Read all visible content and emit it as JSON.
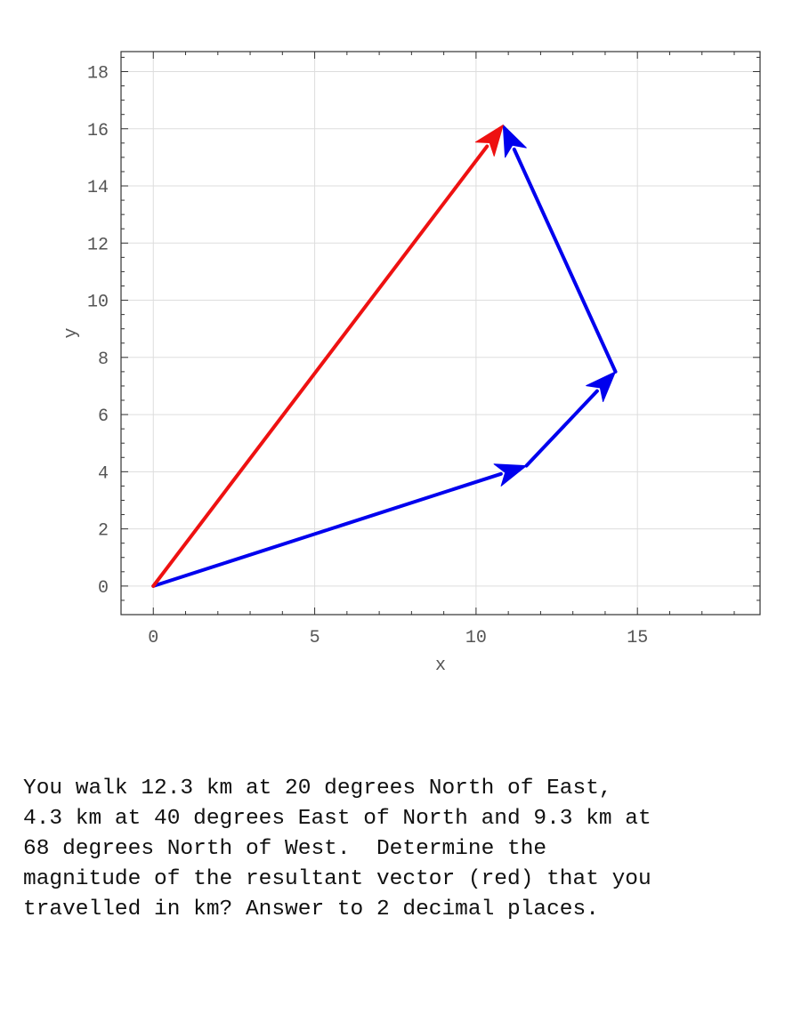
{
  "chart_data": {
    "type": "vector-diagram",
    "xlabel": "x",
    "ylabel": "y",
    "xlim": [
      -1,
      18.8
    ],
    "ylim": [
      -1,
      18.7
    ],
    "x_ticks": [
      0,
      5,
      10,
      15
    ],
    "y_ticks": [
      0,
      2,
      4,
      6,
      8,
      10,
      12,
      14,
      16,
      18
    ],
    "grid": true,
    "vectors": [
      {
        "role": "component",
        "color": "#0000ee",
        "from": [
          0,
          0
        ],
        "to": [
          11.56,
          4.21
        ]
      },
      {
        "role": "component",
        "color": "#0000ee",
        "from": [
          11.56,
          4.21
        ],
        "to": [
          14.32,
          7.5
        ]
      },
      {
        "role": "component",
        "color": "#0000ee",
        "from": [
          14.32,
          7.5
        ],
        "to": [
          10.84,
          16.13
        ]
      },
      {
        "role": "resultant",
        "color": "#ee1111",
        "from": [
          0,
          0
        ],
        "to": [
          10.84,
          16.13
        ]
      }
    ]
  },
  "question": {
    "lines": [
      "You walk 12.3 km at 20 degrees North of East,",
      "4.3 km at 40 degrees East of North and 9.3 km at",
      "68 degrees North of West.  Determine the",
      "magnitude of the resultant vector (red) that you",
      "travelled in km? Answer to 2 decimal places."
    ]
  }
}
